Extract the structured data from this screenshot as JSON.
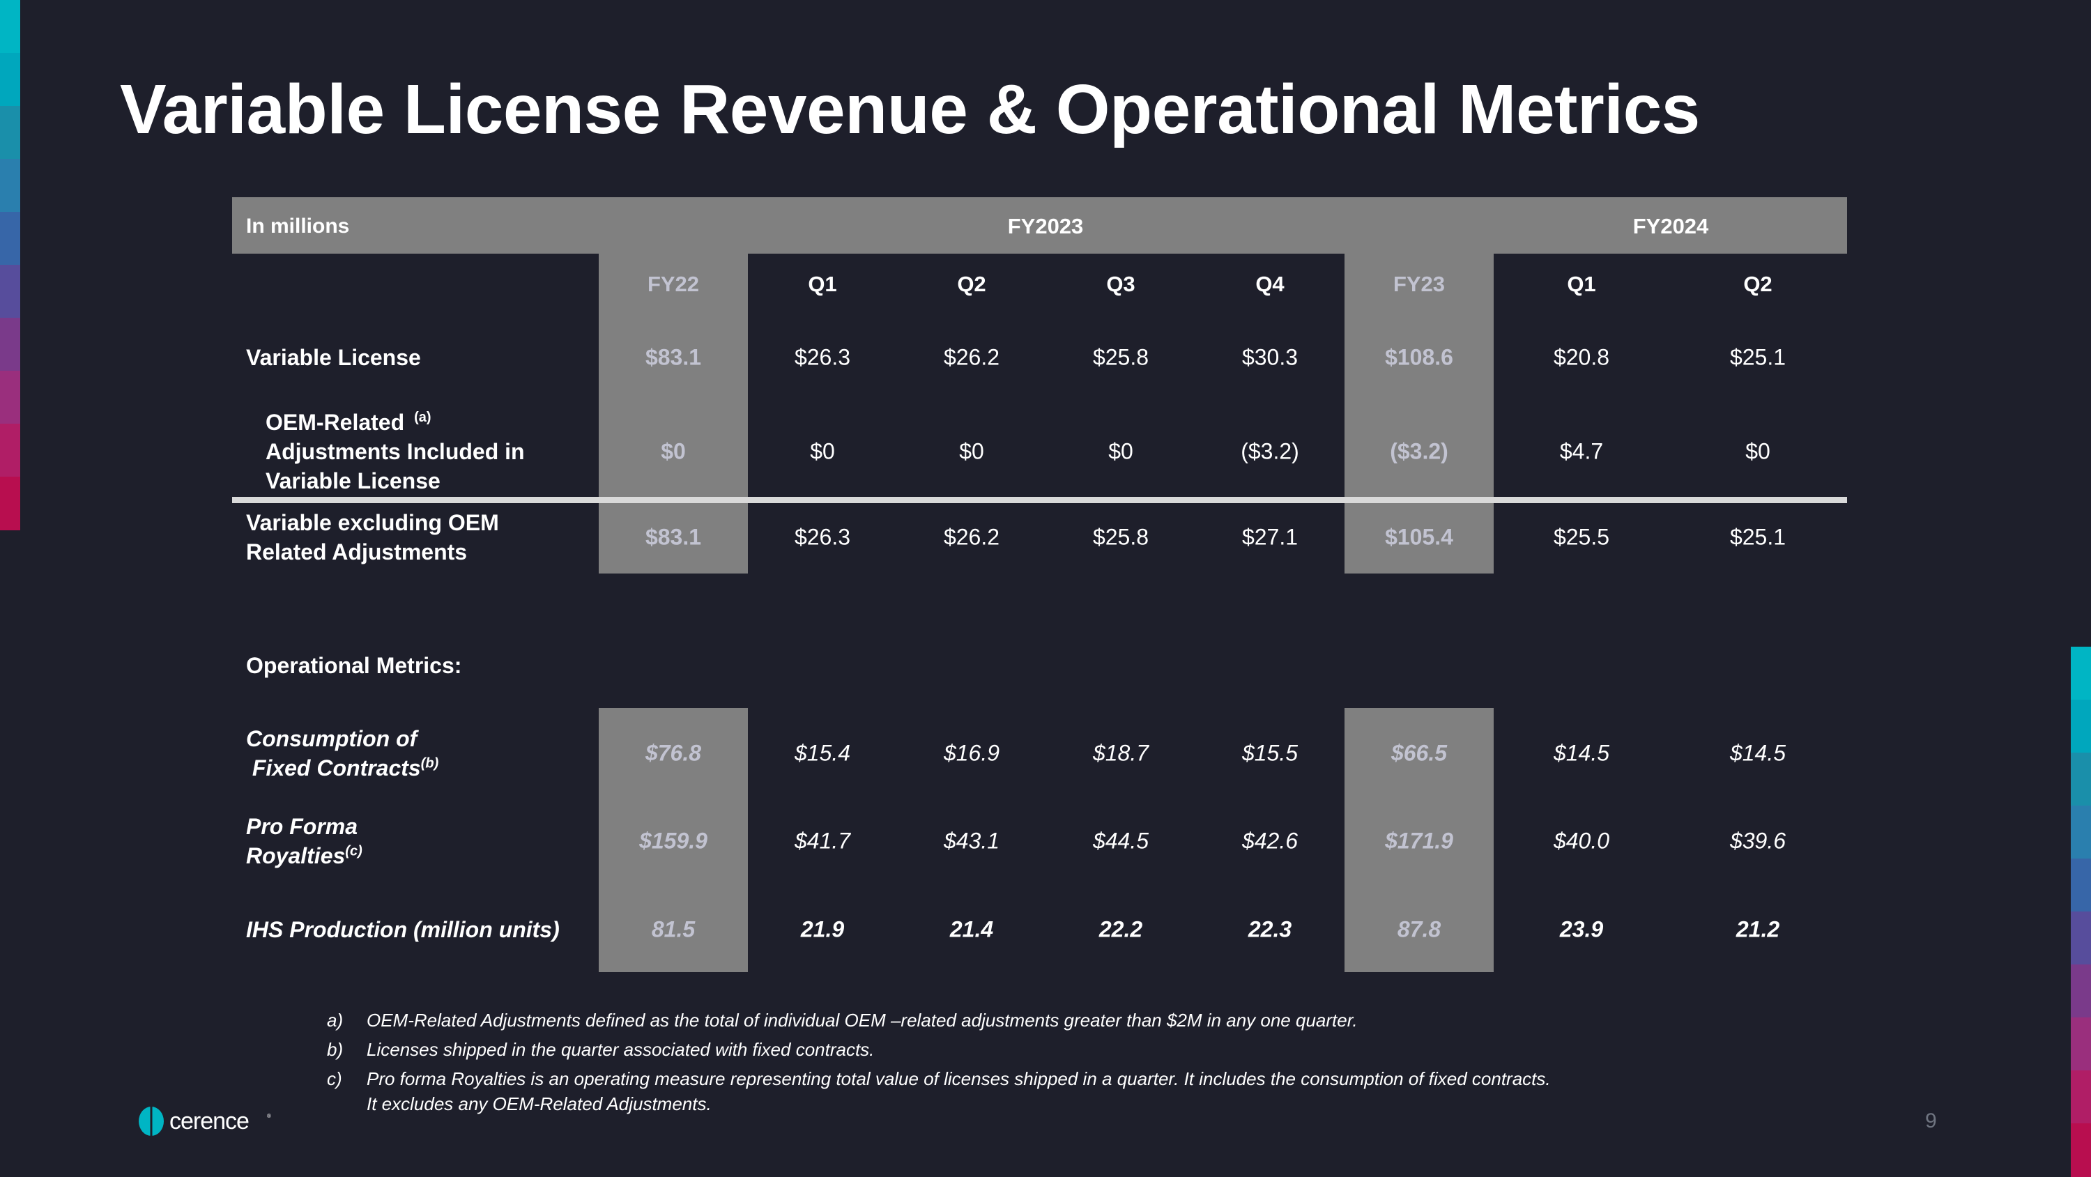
{
  "title": "Variable License Revenue & Operational Metrics",
  "table": {
    "units_label": "In millions",
    "group_headers": [
      "FY2023",
      "FY2024"
    ],
    "columns": [
      "FY22",
      "Q1",
      "Q2",
      "Q3",
      "Q4",
      "FY23",
      "Q1",
      "Q2"
    ],
    "rows": [
      {
        "label": [
          "Variable License"
        ],
        "sup": "",
        "values": [
          "$83.1",
          "$26.3",
          "$26.2",
          "$25.8",
          "$30.3",
          "$108.6",
          "$20.8",
          "$25.1"
        ]
      },
      {
        "label": [
          "OEM-Related",
          "Adjustments Included in",
          "Variable License"
        ],
        "sup": "(a)",
        "values": [
          "$0",
          "$0",
          "$0",
          "$0",
          "($3.2)",
          "($3.2)",
          "$4.7",
          "$0"
        ]
      },
      {
        "label": [
          "Variable excluding OEM",
          "Related Adjustments"
        ],
        "sup": "",
        "values": [
          "$83.1",
          "$26.3",
          "$26.2",
          "$25.8",
          "$27.1",
          "$105.4",
          "$25.5",
          "$25.1"
        ]
      }
    ],
    "section_label": "Operational Metrics:",
    "metrics": [
      {
        "label": [
          "Consumption of",
          " Fixed Contracts"
        ],
        "sup": "(b)",
        "values": [
          "$76.8",
          "$15.4",
          "$16.9",
          "$18.7",
          "$15.5",
          "$66.5",
          "$14.5",
          "$14.5"
        ]
      },
      {
        "label": [
          "Pro Forma",
          "Royalties"
        ],
        "sup": "(c)",
        "values": [
          "$159.9",
          "$41.7",
          "$43.1",
          "$44.5",
          "$42.6",
          "$171.9",
          "$40.0",
          "$39.6"
        ]
      },
      {
        "label": [
          "IHS Production (million units)"
        ],
        "sup": "",
        "values": [
          "81.5",
          "21.9",
          "21.4",
          "22.2",
          "22.3",
          "87.8",
          "23.9",
          "21.2"
        ]
      }
    ]
  },
  "footnotes": [
    {
      "marker": "a)",
      "lines": [
        "OEM-Related Adjustments defined as the total of individual  OEM –related adjustments greater than $2M in any one quarter."
      ]
    },
    {
      "marker": "b)",
      "lines": [
        "Licenses shipped in the quarter associated with fixed contracts."
      ]
    },
    {
      "marker": "c)",
      "lines": [
        "Pro forma Royalties is an operating measure representing total value of licenses shipped in a quarter. It includes the consumption of fixed contracts.",
        "It excludes any OEM-Related Adjustments."
      ]
    }
  ],
  "logo_text": "cerence",
  "page_number": "9",
  "colors": {
    "background": "#1e1f2b",
    "header_gray": "#808080",
    "accent_stripe": [
      "#00b5c4",
      "#00a7bd",
      "#1a8faa",
      "#2a7fae",
      "#3766a8",
      "#574d9c",
      "#7a3a8a",
      "#9a2f7d",
      "#b01e66",
      "#b80e4f"
    ]
  }
}
